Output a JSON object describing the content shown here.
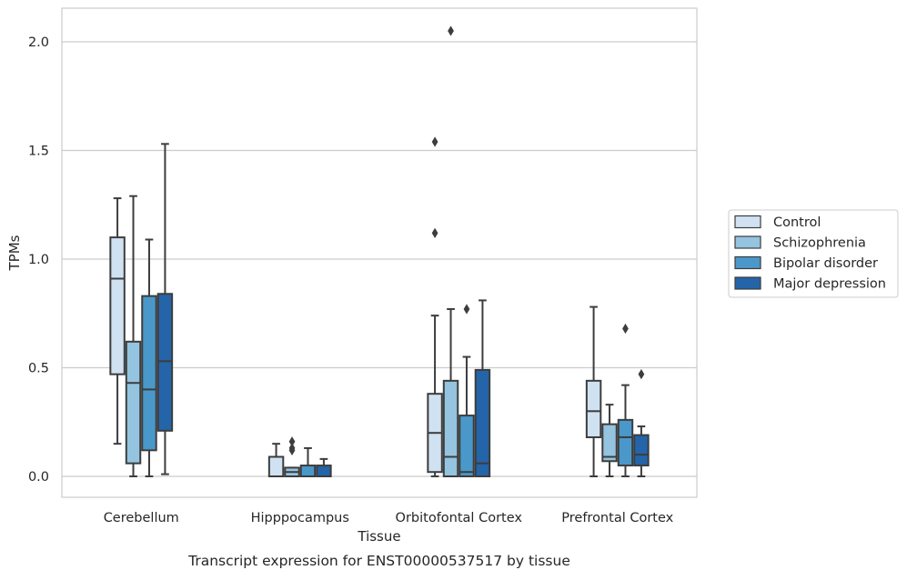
{
  "chart_data": {
    "type": "box",
    "title": "",
    "caption": "Transcript expression for ENST00000537517 by tissue",
    "xlabel": "Tissue",
    "ylabel": "TPMs",
    "ylim": [
      -0.1,
      2.15
    ],
    "yticks": [
      0.0,
      0.5,
      1.0,
      1.5,
      2.0
    ],
    "ytick_labels": [
      "0.0",
      "0.5",
      "1.0",
      "1.5",
      "2.0"
    ],
    "grid": "horizontal",
    "legend_position": "right",
    "categories": [
      "Cerebellum",
      "Hipppocampus",
      "Orbitofontal Cortex",
      "Prefrontal Cortex"
    ],
    "series": [
      {
        "name": "Control",
        "color": "#d0e1f2",
        "boxes": [
          {
            "whisker_low": 0.15,
            "q1": 0.47,
            "median": 0.91,
            "q3": 1.1,
            "whisker_high": 1.28,
            "outliers": []
          },
          {
            "whisker_low": 0.0,
            "q1": 0.0,
            "median": 0.0,
            "q3": 0.09,
            "whisker_high": 0.15,
            "outliers": []
          },
          {
            "whisker_low": 0.0,
            "q1": 0.02,
            "median": 0.2,
            "q3": 0.38,
            "whisker_high": 0.74,
            "outliers": [
              1.12,
              1.54
            ]
          },
          {
            "whisker_low": 0.0,
            "q1": 0.18,
            "median": 0.3,
            "q3": 0.44,
            "whisker_high": 0.78,
            "outliers": []
          }
        ]
      },
      {
        "name": "Schizophrenia",
        "color": "#94c4df",
        "boxes": [
          {
            "whisker_low": 0.0,
            "q1": 0.06,
            "median": 0.43,
            "q3": 0.62,
            "whisker_high": 1.29,
            "outliers": []
          },
          {
            "whisker_low": 0.0,
            "q1": 0.0,
            "median": 0.02,
            "q3": 0.04,
            "whisker_high": 0.04,
            "outliers": [
              0.12,
              0.13,
              0.16
            ]
          },
          {
            "whisker_low": 0.0,
            "q1": 0.0,
            "median": 0.09,
            "q3": 0.44,
            "whisker_high": 0.77,
            "outliers": [
              2.05
            ]
          },
          {
            "whisker_low": 0.0,
            "q1": 0.07,
            "median": 0.09,
            "q3": 0.24,
            "whisker_high": 0.33,
            "outliers": []
          }
        ]
      },
      {
        "name": "Bipolar disorder",
        "color": "#4a98c9",
        "boxes": [
          {
            "whisker_low": 0.0,
            "q1": 0.12,
            "median": 0.4,
            "q3": 0.83,
            "whisker_high": 1.09,
            "outliers": []
          },
          {
            "whisker_low": 0.0,
            "q1": 0.0,
            "median": 0.0,
            "q3": 0.05,
            "whisker_high": 0.13,
            "outliers": []
          },
          {
            "whisker_low": 0.0,
            "q1": 0.0,
            "median": 0.02,
            "q3": 0.28,
            "whisker_high": 0.55,
            "outliers": [
              0.77
            ]
          },
          {
            "whisker_low": 0.0,
            "q1": 0.05,
            "median": 0.18,
            "q3": 0.26,
            "whisker_high": 0.42,
            "outliers": [
              0.68
            ]
          }
        ]
      },
      {
        "name": "Major depression",
        "color": "#2464a9",
        "boxes": [
          {
            "whisker_low": 0.01,
            "q1": 0.21,
            "median": 0.53,
            "q3": 0.84,
            "whisker_high": 1.53,
            "outliers": []
          },
          {
            "whisker_low": 0.0,
            "q1": 0.0,
            "median": 0.0,
            "q3": 0.05,
            "whisker_high": 0.08,
            "outliers": []
          },
          {
            "whisker_low": 0.0,
            "q1": 0.0,
            "median": 0.06,
            "q3": 0.49,
            "whisker_high": 0.81,
            "outliers": []
          },
          {
            "whisker_low": 0.0,
            "q1": 0.05,
            "median": 0.1,
            "q3": 0.19,
            "whisker_high": 0.23,
            "outliers": [
              0.47
            ]
          }
        ]
      }
    ]
  }
}
